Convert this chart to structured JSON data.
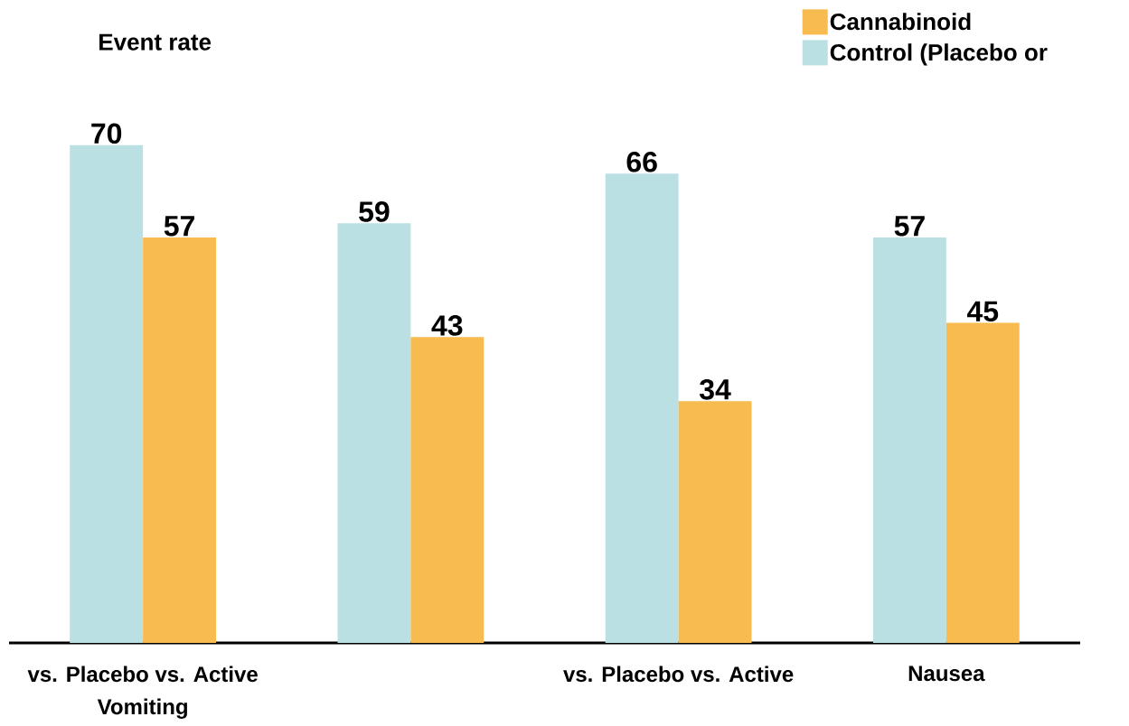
{
  "chart_data": {
    "type": "bar",
    "ylabel": "Event rate",
    "categories": [
      "vs. Placebo vs. Active",
      null,
      "vs. Placebo vs. Active",
      "Nausea"
    ],
    "series": [
      {
        "name": "Control (Placebo or",
        "color": "#bbe0e3",
        "values": [
          70,
          59,
          66,
          57
        ]
      },
      {
        "name": "Cannabinoid",
        "color": "#f7bb4f",
        "values": [
          57,
          43,
          34,
          45
        ]
      }
    ],
    "annotations": [
      "Vomiting"
    ],
    "data_labels": true,
    "legend": "top right"
  }
}
